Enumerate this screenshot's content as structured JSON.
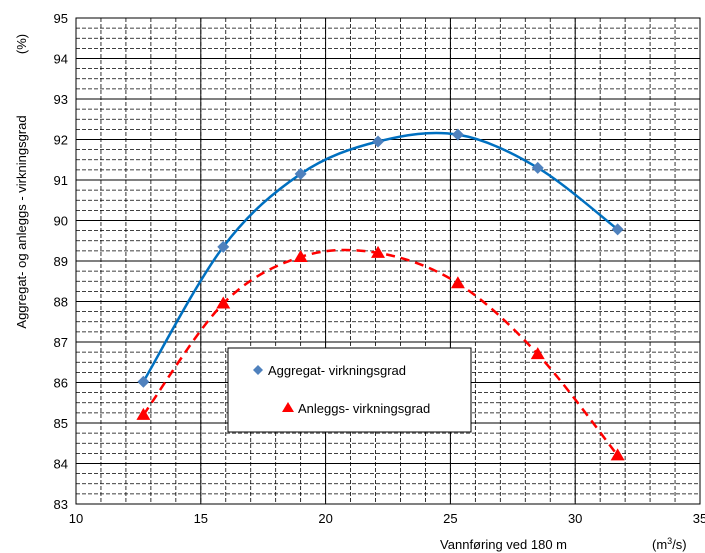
{
  "chart_data": {
    "type": "line",
    "xlabel": "Vannføring  ved 180 m",
    "xunit_prefix": "(m",
    "xunit_sup": "3",
    "xunit_suffix": "/s)",
    "ylabel": "Aggregat- og anleggs - virkningsgrad",
    "yunit": "(%)",
    "xlim": [
      10,
      35
    ],
    "ylim": [
      83,
      95
    ],
    "xticks": [
      10,
      15,
      20,
      25,
      30,
      35
    ],
    "yticks": [
      83,
      84,
      85,
      86,
      87,
      88,
      89,
      90,
      91,
      92,
      93,
      94,
      95
    ],
    "grid": true,
    "legend_placement": "center",
    "series": [
      {
        "name": "Aggregat- virkningsgrad",
        "color": "#4f81bd",
        "line_color": "#0070c0",
        "marker": "diamond",
        "line_style": "solid",
        "x": [
          12.7,
          15.9,
          19.0,
          22.1,
          25.3,
          28.5,
          31.7
        ],
        "y": [
          86.02,
          89.35,
          91.15,
          91.95,
          92.12,
          91.3,
          89.78
        ]
      },
      {
        "name": "Anleggs- virkningsgrad",
        "color": "#ff0000",
        "line_color": "#ff0000",
        "marker": "triangle",
        "line_style": "dashed",
        "x": [
          12.7,
          15.9,
          19.0,
          22.1,
          25.3,
          28.5,
          31.7
        ],
        "y": [
          85.2,
          87.95,
          89.1,
          89.2,
          88.45,
          86.7,
          84.2
        ]
      }
    ]
  }
}
